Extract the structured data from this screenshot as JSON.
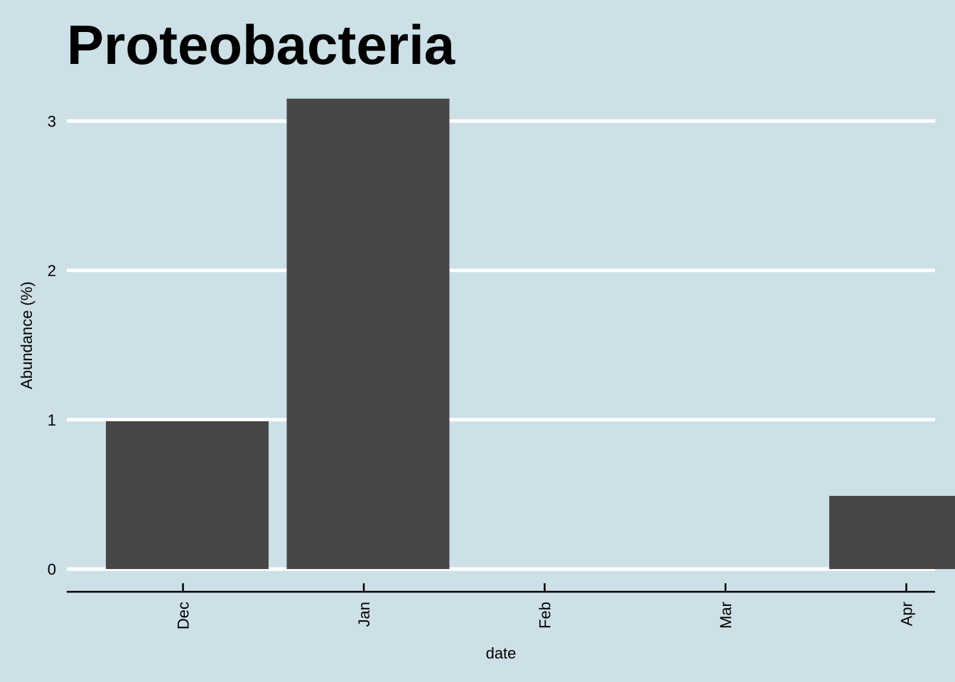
{
  "chart_data": {
    "type": "bar",
    "title": "Proteobacteria",
    "xlabel": "date",
    "ylabel": "Abundance (%)",
    "categories": [
      "Dec",
      "Jan",
      "Feb",
      "Mar",
      "Apr"
    ],
    "values": [
      0.99,
      3.15,
      0,
      0,
      0.49
    ],
    "y_ticks": [
      0,
      1,
      2,
      3
    ],
    "ylim": [
      0,
      3.15
    ],
    "grid": "horizontal",
    "colors": {
      "background": "#cddfe7",
      "bar": "#474747",
      "grid": "#ffffff"
    }
  }
}
